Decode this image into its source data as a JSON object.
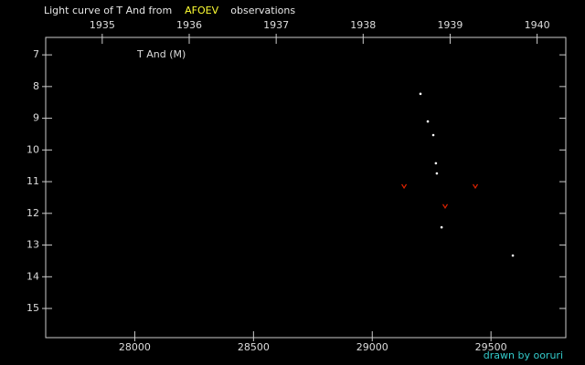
{
  "chart_data": {
    "type": "scatter",
    "title_parts": [
      {
        "text": "Light curve of T And from",
        "color": "#e8e8e8"
      },
      {
        "text": "AFOEV",
        "color": "#ffff33"
      },
      {
        "text": "observations",
        "color": "#e8e8e8"
      }
    ],
    "annotation": "T And (M)",
    "credit": "drawn by ooruri",
    "credit_color": "#33cccc",
    "xlim": [
      27625,
      29815
    ],
    "xticks": [
      28000,
      28500,
      29000,
      29500
    ],
    "x2lim": [
      1934.35,
      1940.33
    ],
    "x2ticks": [
      1935,
      1936,
      1937,
      1938,
      1939,
      1940
    ],
    "ylim": [
      6.45,
      15.92
    ],
    "y_inverted": true,
    "yticks": [
      7,
      8,
      9,
      10,
      11,
      12,
      13,
      14,
      15
    ],
    "series": [
      {
        "color": "#ffffff",
        "marker": "dot",
        "x": [
          29203,
          29234,
          29257,
          29268,
          29272,
          29292,
          29592
        ],
        "values": [
          8.23,
          9.1,
          9.53,
          10.42,
          10.74,
          12.44,
          13.33
        ]
      },
      {
        "color": "#dd2200",
        "marker": "v",
        "x": [
          29134,
          29307,
          29434
        ],
        "values": [
          11.14,
          11.77,
          11.14
        ]
      }
    ]
  }
}
